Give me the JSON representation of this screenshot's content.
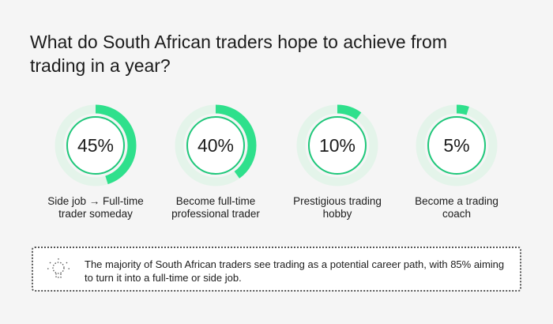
{
  "title": "What do South African traders hope to achieve from trading in a year?",
  "colors": {
    "accent": "#2fe08c",
    "track": "#e4f4ea",
    "inner_stroke": "#1fc77a"
  },
  "chart_data": {
    "type": "donut-progress",
    "title": "What do South African traders hope to achieve from trading in a year?",
    "items": [
      {
        "label_line1": "Side job → Full-time",
        "label_line2": "trader someday",
        "value": 45,
        "display": "45%"
      },
      {
        "label_line1": "Become full-time",
        "label_line2": "professional trader",
        "value": 40,
        "display": "40%"
      },
      {
        "label_line1": "Prestigious trading",
        "label_line2": "hobby",
        "value": 10,
        "display": "10%"
      },
      {
        "label_line1": "Become a trading",
        "label_line2": "coach",
        "value": 5,
        "display": "5%"
      }
    ]
  },
  "note": {
    "icon": "lightbulb-icon",
    "text": "The majority of South African traders see trading as a potential career path, with 85% aiming to turn it into a full-time or side job."
  }
}
